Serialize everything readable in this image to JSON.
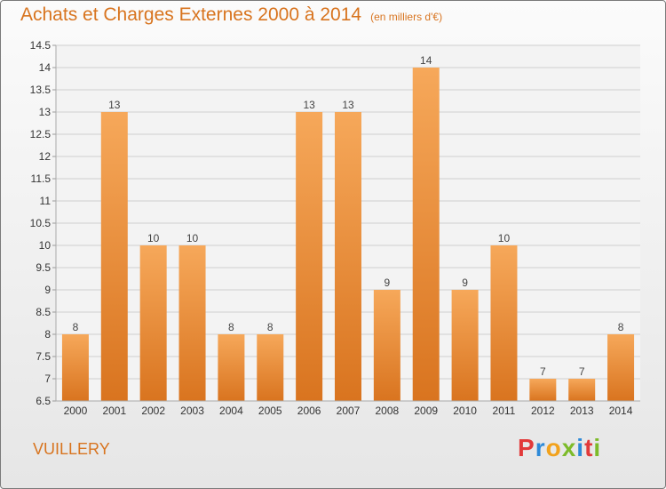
{
  "header": {
    "title": "Achats et Charges Externes 2000 à 2014",
    "unit": "(en milliers d'€)"
  },
  "footer": {
    "place": "VUILLERY",
    "logo_letters": [
      "P",
      "r",
      "o",
      "x",
      "i",
      "t",
      "i"
    ],
    "logo_colors": [
      "#e23a3a",
      "#2e8ad8",
      "#f2a21c",
      "#7dbb2a",
      "#2e8ad8",
      "#e23a3a",
      "#7dbb2a"
    ]
  },
  "chart_data": {
    "type": "bar",
    "title": "Achats et Charges Externes 2000 à 2014",
    "subtitle": "(en milliers d'€)",
    "categories": [
      "2000",
      "2001",
      "2002",
      "2003",
      "2004",
      "2005",
      "2006",
      "2007",
      "2008",
      "2009",
      "2010",
      "2011",
      "2012",
      "2013",
      "2014"
    ],
    "values": [
      8,
      13,
      10,
      10,
      8,
      8,
      13,
      13,
      9,
      14,
      9,
      10,
      7,
      7,
      8
    ],
    "data_labels": [
      "8",
      "13",
      "10",
      "10",
      "8",
      "8",
      "13",
      "13",
      "9",
      "14",
      "9",
      "10",
      "7",
      "7",
      "8"
    ],
    "ylim": [
      6.5,
      14.5
    ],
    "yticks": [
      "6.5",
      "7",
      "7.5",
      "8",
      "8.5",
      "9",
      "9.5",
      "10",
      "10.5",
      "11",
      "11.5",
      "12",
      "12.5",
      "13",
      "13.5",
      "14",
      "14.5"
    ],
    "xlabel": "",
    "ylabel": "",
    "grid": true,
    "colors": {
      "bar_light": "#f6a85a",
      "bar_dark": "#d9741f",
      "grid": "#cfcfcf",
      "plot_bg": "#f3f3f3"
    }
  }
}
